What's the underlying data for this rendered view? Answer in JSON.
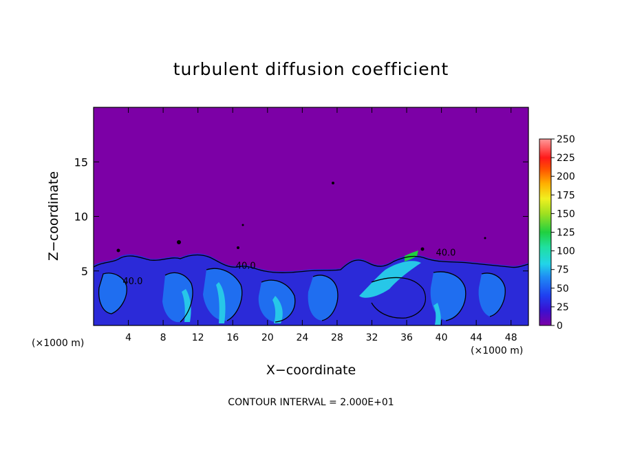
{
  "title": "turbulent diffusion coefficient",
  "xlabel": "X−coordinate",
  "ylabel": "Z−coordinate",
  "x_unit_left": "(×1000 m)",
  "x_unit_right": "(×1000 m)",
  "contour_note": "CONTOUR INTERVAL = 2.000E+01",
  "chart_data": {
    "type": "heatmap",
    "title": "turbulent diffusion coefficient",
    "xlabel": "X−coordinate",
    "ylabel": "Z−coordinate",
    "x_unit": "×1000 m",
    "xlim": [
      0,
      50
    ],
    "ylim": [
      0,
      20
    ],
    "x_ticks": [
      4,
      8,
      12,
      16,
      20,
      24,
      28,
      32,
      36,
      40,
      44,
      48
    ],
    "y_ticks": [
      5,
      10,
      15
    ],
    "colorbar": {
      "range": [
        0,
        250
      ],
      "ticks": [
        0,
        25,
        50,
        75,
        100,
        125,
        150,
        175,
        200,
        225,
        250
      ]
    },
    "contour_interval": 20,
    "contour_labels": [
      "40.0",
      "40.0",
      "40.0"
    ],
    "colors": {
      "background_field": "#7c00a6",
      "low": "#2a1fd8",
      "mid": "#1f6ef0",
      "high": "#27c7e8",
      "contour": "#000000"
    }
  }
}
